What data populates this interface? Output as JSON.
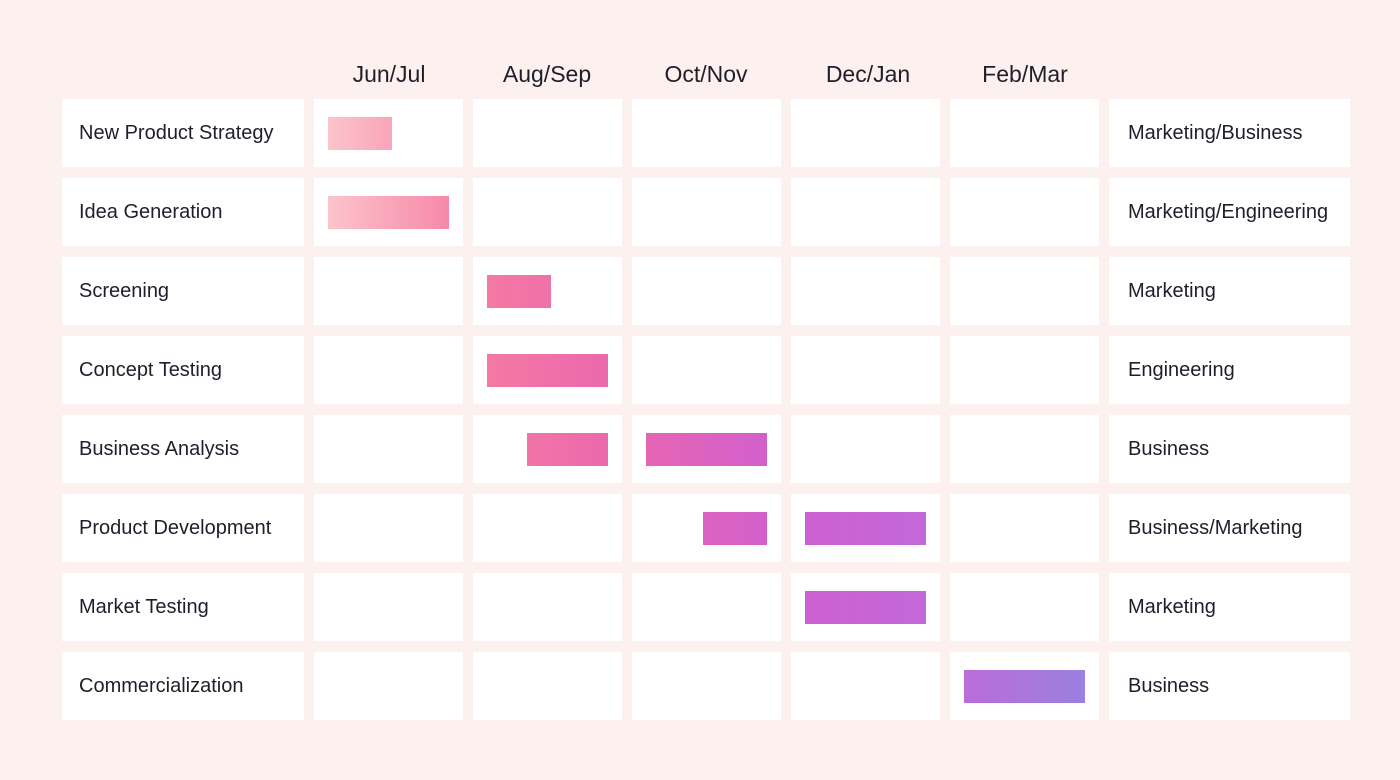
{
  "chart_data": {
    "type": "gantt",
    "periods": [
      "Jun/Jul",
      "Aug/Sep",
      "Oct/Nov",
      "Dec/Jan",
      "Feb/Mar"
    ],
    "tasks": [
      {
        "name": "New Product Strategy",
        "owner": "Marketing/Business",
        "segments": [
          {
            "period": 0,
            "start": 0.0,
            "end": 0.53
          }
        ]
      },
      {
        "name": "Idea Generation",
        "owner": "Marketing/Engineering",
        "segments": [
          {
            "period": 0,
            "start": 0.0,
            "end": 1.0
          }
        ]
      },
      {
        "name": "Screening",
        "owner": "Marketing",
        "segments": [
          {
            "period": 1,
            "start": 0.0,
            "end": 0.53
          }
        ]
      },
      {
        "name": "Concept Testing",
        "owner": "Engineering",
        "segments": [
          {
            "period": 1,
            "start": 0.0,
            "end": 1.0
          }
        ]
      },
      {
        "name": "Business Analysis",
        "owner": "Business",
        "segments": [
          {
            "period": 1,
            "start": 0.33,
            "end": 1.0
          },
          {
            "period": 2,
            "start": 0.0,
            "end": 1.0
          }
        ]
      },
      {
        "name": "Product Development",
        "owner": "Business/Marketing",
        "segments": [
          {
            "period": 2,
            "start": 0.47,
            "end": 1.0
          },
          {
            "period": 3,
            "start": 0.0,
            "end": 1.0
          }
        ]
      },
      {
        "name": "Market Testing",
        "owner": "Marketing",
        "segments": [
          {
            "period": 3,
            "start": 0.0,
            "end": 1.0
          }
        ]
      },
      {
        "name": "Commercialization",
        "owner": "Business",
        "segments": [
          {
            "period": 4,
            "start": 0.0,
            "end": 1.0
          }
        ]
      }
    ],
    "colors": {
      "background": "#fdf1f0",
      "cell": "#ffffff",
      "gradient": [
        "#fcc4cb",
        "#f57aa2",
        "#e866b0",
        "#cf5fd0",
        "#c268d8",
        "#9a80e0"
      ]
    },
    "grid": true
  }
}
